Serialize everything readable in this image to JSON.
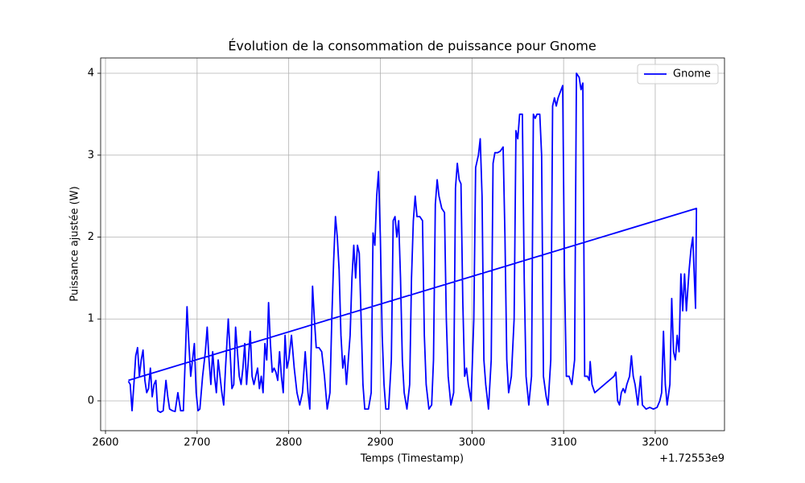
{
  "chart_data": {
    "type": "line",
    "title": "Évolution de la consommation de puissance pour Gnome",
    "xlabel": "Temps (Timestamp)",
    "ylabel": "Puissance ajustée (W)",
    "x_offset_label": "+1.72553e9",
    "x": [
      2625,
      2627,
      2629,
      2631,
      2633,
      2635,
      2637,
      2639,
      2641,
      2643,
      2645,
      2647,
      2649,
      2651,
      2653,
      2655,
      2657,
      2660,
      2663,
      2666,
      2668,
      2670,
      2673,
      2676,
      2679,
      2682,
      2685,
      2687,
      2689,
      2691,
      2693,
      2695,
      2697,
      2699,
      2701,
      2703,
      2706,
      2709,
      2711,
      2713,
      2715,
      2717,
      2719,
      2721,
      2723,
      2725,
      2727,
      2729,
      2731,
      2734,
      2736,
      2738,
      2740,
      2742,
      2744,
      2746,
      2748,
      2750,
      2752,
      2754,
      2756,
      2758,
      2760,
      2762,
      2764,
      2766,
      2768,
      2770,
      2772,
      2774,
      2776,
      2778,
      2780,
      2782,
      2784,
      2786,
      2788,
      2790,
      2792,
      2794,
      2796,
      2798,
      2800,
      2803,
      2806,
      2809,
      2812,
      2815,
      2818,
      2821,
      2823,
      2826,
      2828,
      2830,
      2833,
      2836,
      2839,
      2842,
      2845,
      2847,
      2849,
      2851,
      2853,
      2855,
      2857,
      2859,
      2861,
      2863,
      2865,
      2867,
      2869,
      2871,
      2873,
      2875,
      2877,
      2879,
      2881,
      2883,
      2887,
      2890,
      2892,
      2894,
      2896,
      2898,
      2900,
      2902,
      2904,
      2906,
      2909,
      2912,
      2914,
      2916,
      2918,
      2920,
      2922,
      2924,
      2926,
      2929,
      2932,
      2934,
      2936,
      2938,
      2940,
      2943,
      2946,
      2948,
      2950,
      2953,
      2956,
      2958,
      2960,
      2962,
      2964,
      2967,
      2970,
      2972,
      2974,
      2977,
      2980,
      2982,
      2984,
      2986,
      2988,
      2990,
      2992,
      2994,
      2996,
      2999,
      3002,
      3004,
      3007,
      3009,
      3011,
      3013,
      3015,
      3018,
      3021,
      3023,
      3025,
      3028,
      3031,
      3034,
      3036,
      3038,
      3040,
      3043,
      3046,
      3048,
      3050,
      3052,
      3055,
      3057,
      3059,
      3062,
      3065,
      3067,
      3069,
      3071,
      3074,
      3076,
      3078,
      3081,
      3083,
      3086,
      3088,
      3090,
      3092,
      3094,
      3099,
      3101,
      3103,
      3106,
      3109,
      3112,
      3114,
      3117,
      3119,
      3121,
      3123,
      3126,
      3128,
      3129,
      3131,
      3134,
      3155,
      3157,
      3159,
      3161,
      3163,
      3165,
      3167,
      3169,
      3172,
      3174,
      3176,
      3178,
      3181,
      3184,
      3186,
      3190,
      3194,
      3198,
      3202,
      3205,
      3207,
      3209,
      3211,
      3213,
      3216,
      3218,
      3220,
      3222,
      3224,
      3226,
      3228,
      3230,
      3232,
      3234,
      3237,
      3239,
      3241,
      3242,
      3244,
      3245,
      2625
    ],
    "series": [
      {
        "name": "Gnome",
        "color": "#0000ff",
        "values": [
          0.24,
          0.2,
          -0.12,
          0.2,
          0.55,
          0.65,
          0.3,
          0.5,
          0.62,
          0.25,
          0.1,
          0.15,
          0.4,
          0.05,
          0.2,
          0.25,
          -0.12,
          -0.14,
          -0.12,
          0.25,
          0.05,
          -0.1,
          -0.12,
          -0.13,
          0.1,
          -0.12,
          -0.12,
          0.5,
          1.15,
          0.7,
          0.3,
          0.5,
          0.7,
          0.1,
          -0.12,
          -0.1,
          0.3,
          0.6,
          0.9,
          0.5,
          0.2,
          0.6,
          0.3,
          0.1,
          0.5,
          0.3,
          0.1,
          -0.05,
          0.4,
          1.0,
          0.6,
          0.15,
          0.2,
          0.9,
          0.6,
          0.3,
          0.2,
          0.4,
          0.7,
          0.2,
          0.5,
          0.85,
          0.3,
          0.2,
          0.3,
          0.4,
          0.15,
          0.3,
          0.1,
          0.7,
          0.5,
          1.2,
          0.7,
          0.35,
          0.4,
          0.35,
          0.25,
          0.6,
          0.3,
          0.1,
          0.8,
          0.4,
          0.5,
          0.8,
          0.4,
          0.1,
          -0.05,
          0.1,
          0.6,
          0.1,
          -0.1,
          1.4,
          1.0,
          0.65,
          0.65,
          0.6,
          0.3,
          -0.1,
          0.1,
          1.0,
          1.7,
          2.25,
          2.0,
          1.6,
          0.8,
          0.4,
          0.55,
          0.2,
          0.5,
          0.8,
          1.5,
          1.9,
          1.5,
          1.9,
          1.8,
          1.0,
          0.2,
          -0.1,
          -0.1,
          0.1,
          2.05,
          1.9,
          2.5,
          2.8,
          2.0,
          0.8,
          0.2,
          -0.1,
          -0.1,
          0.5,
          2.2,
          2.25,
          2.0,
          2.2,
          1.5,
          0.5,
          0.1,
          -0.1,
          0.2,
          1.5,
          2.2,
          2.5,
          2.25,
          2.25,
          2.2,
          0.8,
          0.2,
          -0.1,
          -0.05,
          0.5,
          2.4,
          2.7,
          2.5,
          2.35,
          2.3,
          1.0,
          0.3,
          -0.05,
          0.1,
          2.6,
          2.9,
          2.7,
          2.65,
          1.2,
          0.3,
          0.4,
          0.2,
          0.0,
          1.0,
          2.85,
          3.0,
          3.2,
          2.5,
          0.5,
          0.2,
          -0.1,
          0.5,
          2.9,
          3.03,
          3.03,
          3.05,
          3.1,
          2.0,
          0.5,
          0.1,
          0.3,
          1.0,
          3.3,
          3.2,
          3.5,
          3.5,
          1.5,
          0.3,
          -0.05,
          0.3,
          3.5,
          3.45,
          3.5,
          3.5,
          3.0,
          0.3,
          0.05,
          -0.05,
          0.5,
          3.6,
          3.7,
          3.6,
          3.7,
          3.85,
          1.5,
          0.3,
          0.3,
          0.2,
          0.5,
          4.0,
          3.95,
          3.8,
          3.88,
          0.3,
          0.3,
          0.25,
          0.48,
          0.2,
          0.1,
          0.3,
          0.35,
          0.0,
          -0.05,
          0.1,
          0.15,
          0.1,
          0.2,
          0.3,
          0.55,
          0.3,
          0.2,
          -0.05,
          0.3,
          -0.05,
          -0.1,
          -0.08,
          -0.1,
          -0.08,
          0.0,
          0.1,
          0.85,
          0.2,
          -0.05,
          0.2,
          1.25,
          0.6,
          0.5,
          0.8,
          0.6,
          1.55,
          1.1,
          1.55,
          1.1,
          1.6,
          1.85,
          2.0,
          1.7,
          1.13,
          2.35,
          0.25
        ]
      }
    ],
    "xlim": [
      2594.7,
      3275.6
    ],
    "ylim": [
      -0.364,
      4.187
    ],
    "xticks": [
      2600,
      2700,
      2800,
      2900,
      3000,
      3100,
      3200
    ],
    "yticks": [
      0,
      1,
      2,
      3,
      4
    ],
    "grid": true,
    "legend": "upper right"
  }
}
